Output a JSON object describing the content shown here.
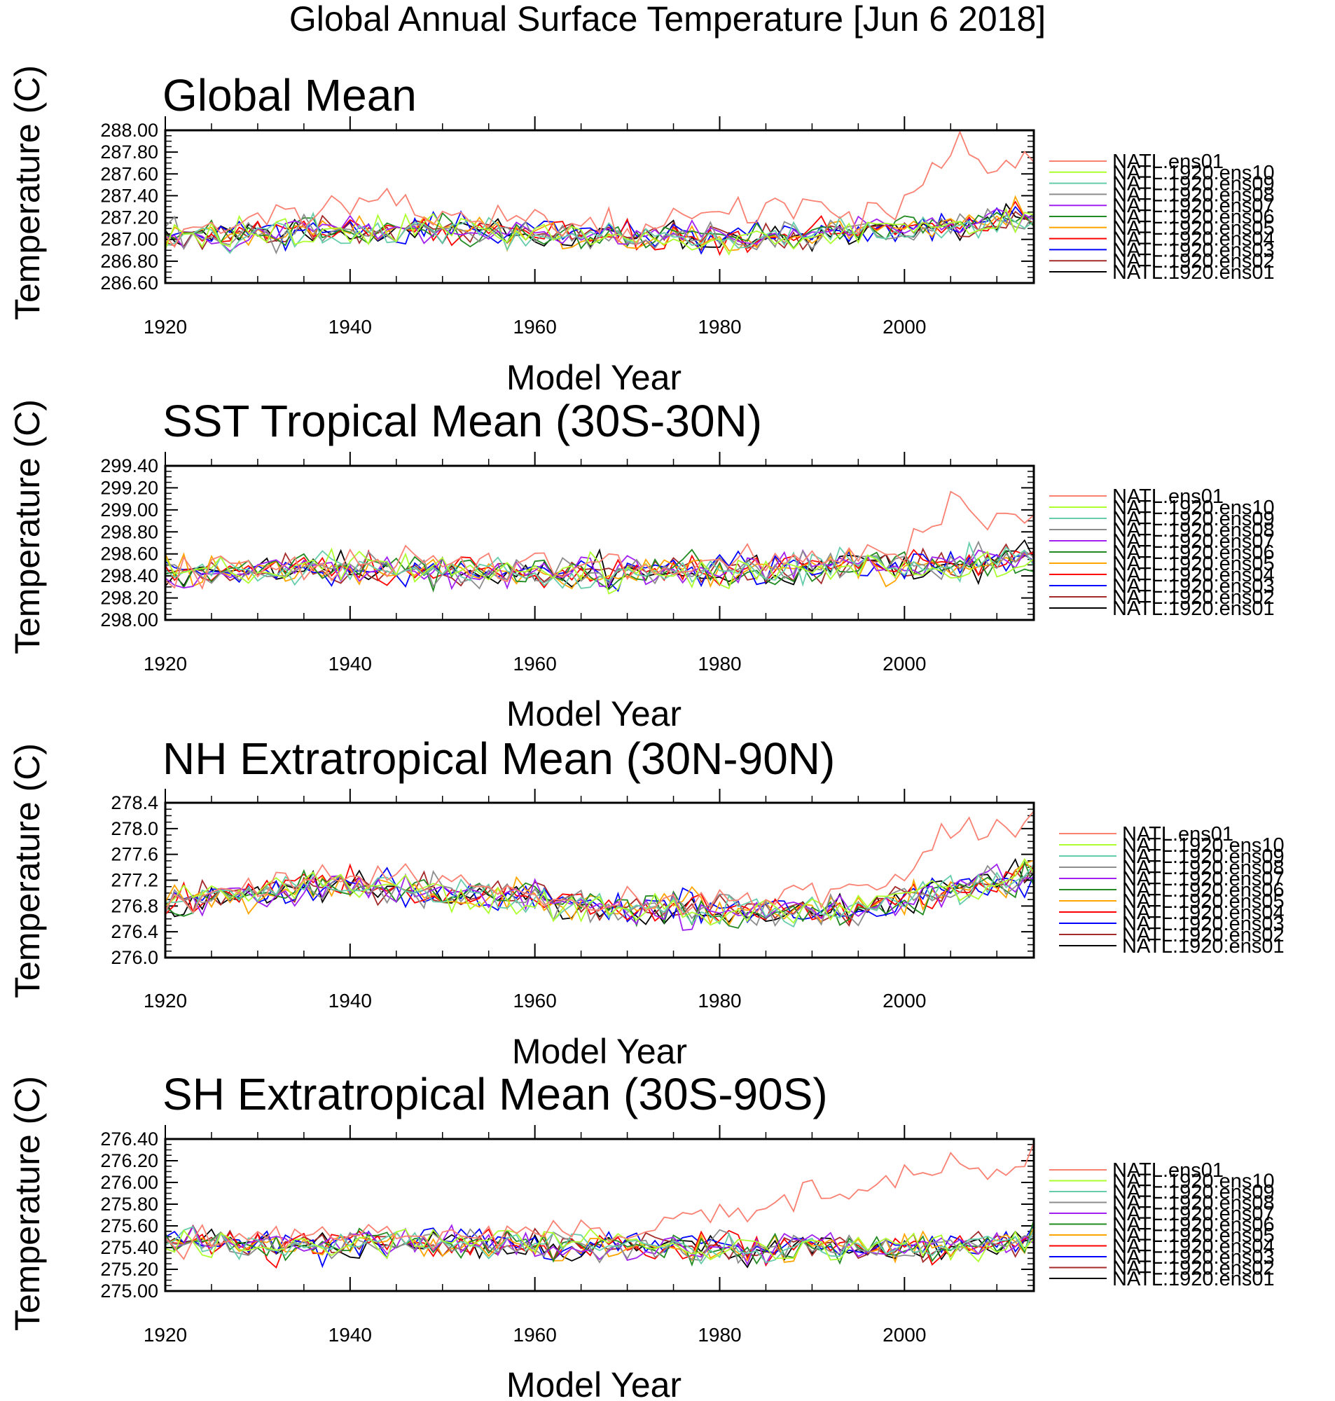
{
  "figure_title": "Global Annual Surface Temperature [Jun  6 2018]",
  "legend_entries": [
    {
      "name": "NATL.ens01",
      "color": "#fa8072"
    },
    {
      "name": "NATL.1920.ens10",
      "color": "#adff2f"
    },
    {
      "name": "NATL.1920.ens09",
      "color": "#66cdaa"
    },
    {
      "name": "NATL.1920.ens08",
      "color": "#8c8c8c"
    },
    {
      "name": "NATL.1920.ens07",
      "color": "#a020f0"
    },
    {
      "name": "NATL.1920.ens06",
      "color": "#228b22"
    },
    {
      "name": "NATL.1920.ens05",
      "color": "#ffa500"
    },
    {
      "name": "NATL.1920.ens04",
      "color": "#ff0000"
    },
    {
      "name": "NATL.1920.ens03",
      "color": "#0000ff"
    },
    {
      "name": "NATL.1920.ens02",
      "color": "#a52a2a"
    },
    {
      "name": "NATL.1920.ens01",
      "color": "#000000"
    }
  ],
  "chart_data": [
    {
      "type": "line",
      "title": "Global Mean",
      "xlabel": "Model Year",
      "ylabel": "Temperature (C)",
      "xlim": [
        1920,
        2014
      ],
      "ylim": [
        286.6,
        288.0
      ],
      "x_ticks": [
        "1920",
        "1940",
        "1960",
        "1980",
        "2000"
      ],
      "y_ticks": [
        "288.00",
        "287.80",
        "287.60",
        "287.40",
        "287.20",
        "287.00",
        "286.80",
        "286.60"
      ],
      "years": [
        1920,
        2014
      ],
      "series_baseline": [
        287.02,
        287.05,
        287.08,
        287.1,
        287.07,
        287.03,
        287.0,
        287.02,
        287.07,
        287.12,
        287.22
      ],
      "natl_ens01_trend": {
        "x": [
          1920,
          1940,
          1970,
          1985,
          1995,
          2000,
          2003,
          2006,
          2009,
          2011,
          2014
        ],
        "y": [
          287.05,
          287.32,
          287.1,
          287.3,
          287.22,
          287.38,
          287.55,
          287.97,
          287.62,
          287.72,
          287.78
        ]
      },
      "amplitude": 0.11
    },
    {
      "type": "line",
      "title": "SST Tropical Mean (30S-30N)",
      "xlabel": "Model Year",
      "ylabel": "Temperature (C)",
      "xlim": [
        1920,
        2014
      ],
      "ylim": [
        298.0,
        299.4
      ],
      "x_ticks": [
        "1920",
        "1940",
        "1960",
        "1980",
        "2000"
      ],
      "y_ticks": [
        "299.40",
        "299.20",
        "299.00",
        "298.80",
        "298.60",
        "298.40",
        "298.20",
        "298.00"
      ],
      "years": [
        1920,
        2014
      ],
      "series_baseline": [
        298.42,
        298.44,
        298.46,
        298.45,
        298.44,
        298.42,
        298.44,
        298.46,
        298.48,
        298.5,
        298.55
      ],
      "natl_ens01_trend": {
        "x": [
          1920,
          1940,
          1970,
          1985,
          1995,
          2000,
          2003,
          2006,
          2009,
          2011,
          2014
        ],
        "y": [
          298.4,
          298.55,
          298.45,
          298.52,
          298.55,
          298.65,
          298.85,
          299.2,
          298.82,
          299.02,
          298.88
        ]
      },
      "amplitude": 0.12
    },
    {
      "type": "line",
      "title": "NH Extratropical Mean (30N-90N)",
      "xlabel": "Model Year",
      "ylabel": "Temperature (C)",
      "xlim": [
        1920,
        2014
      ],
      "ylim": [
        276.0,
        278.4
      ],
      "x_ticks": [
        "1920",
        "1940",
        "1960",
        "1980",
        "2000"
      ],
      "y_ticks": [
        "278.4",
        "278.0",
        "277.6",
        "277.2",
        "276.8",
        "276.4",
        "276.0"
      ],
      "years": [
        1920,
        2014
      ],
      "series_baseline": [
        276.85,
        277.0,
        277.15,
        277.0,
        276.95,
        276.8,
        276.75,
        276.7,
        276.8,
        277.05,
        277.3
      ],
      "natl_ens01_trend": {
        "x": [
          1920,
          1940,
          1970,
          1985,
          1995,
          2000,
          2003,
          2006,
          2009,
          2011,
          2014
        ],
        "y": [
          276.85,
          277.3,
          276.85,
          276.95,
          277.1,
          277.4,
          277.7,
          278.1,
          277.85,
          277.95,
          278.15
        ]
      },
      "amplitude": 0.2
    },
    {
      "type": "line",
      "title": "SH Extratropical Mean (30S-90S)",
      "xlabel": "Model Year",
      "ylabel": "Temperature (C)",
      "xlim": [
        1920,
        2014
      ],
      "ylim": [
        275.0,
        276.4
      ],
      "x_ticks": [
        "1920",
        "1940",
        "1960",
        "1980",
        "2000"
      ],
      "y_ticks": [
        "276.40",
        "276.20",
        "276.00",
        "275.80",
        "275.60",
        "275.40",
        "275.20",
        "275.00"
      ],
      "years": [
        1920,
        2014
      ],
      "series_baseline": [
        275.45,
        275.4,
        275.42,
        275.44,
        275.42,
        275.42,
        275.4,
        275.4,
        275.38,
        275.4,
        275.48
      ],
      "natl_ens01_trend": {
        "x": [
          1920,
          1940,
          1970,
          1975,
          1985,
          1995,
          2000,
          2003,
          2006,
          2009,
          2011,
          2014
        ],
        "y": [
          275.45,
          275.5,
          275.55,
          275.65,
          275.75,
          275.9,
          276.0,
          276.1,
          276.25,
          276.0,
          276.08,
          276.3
        ]
      },
      "amplitude": 0.11
    }
  ]
}
